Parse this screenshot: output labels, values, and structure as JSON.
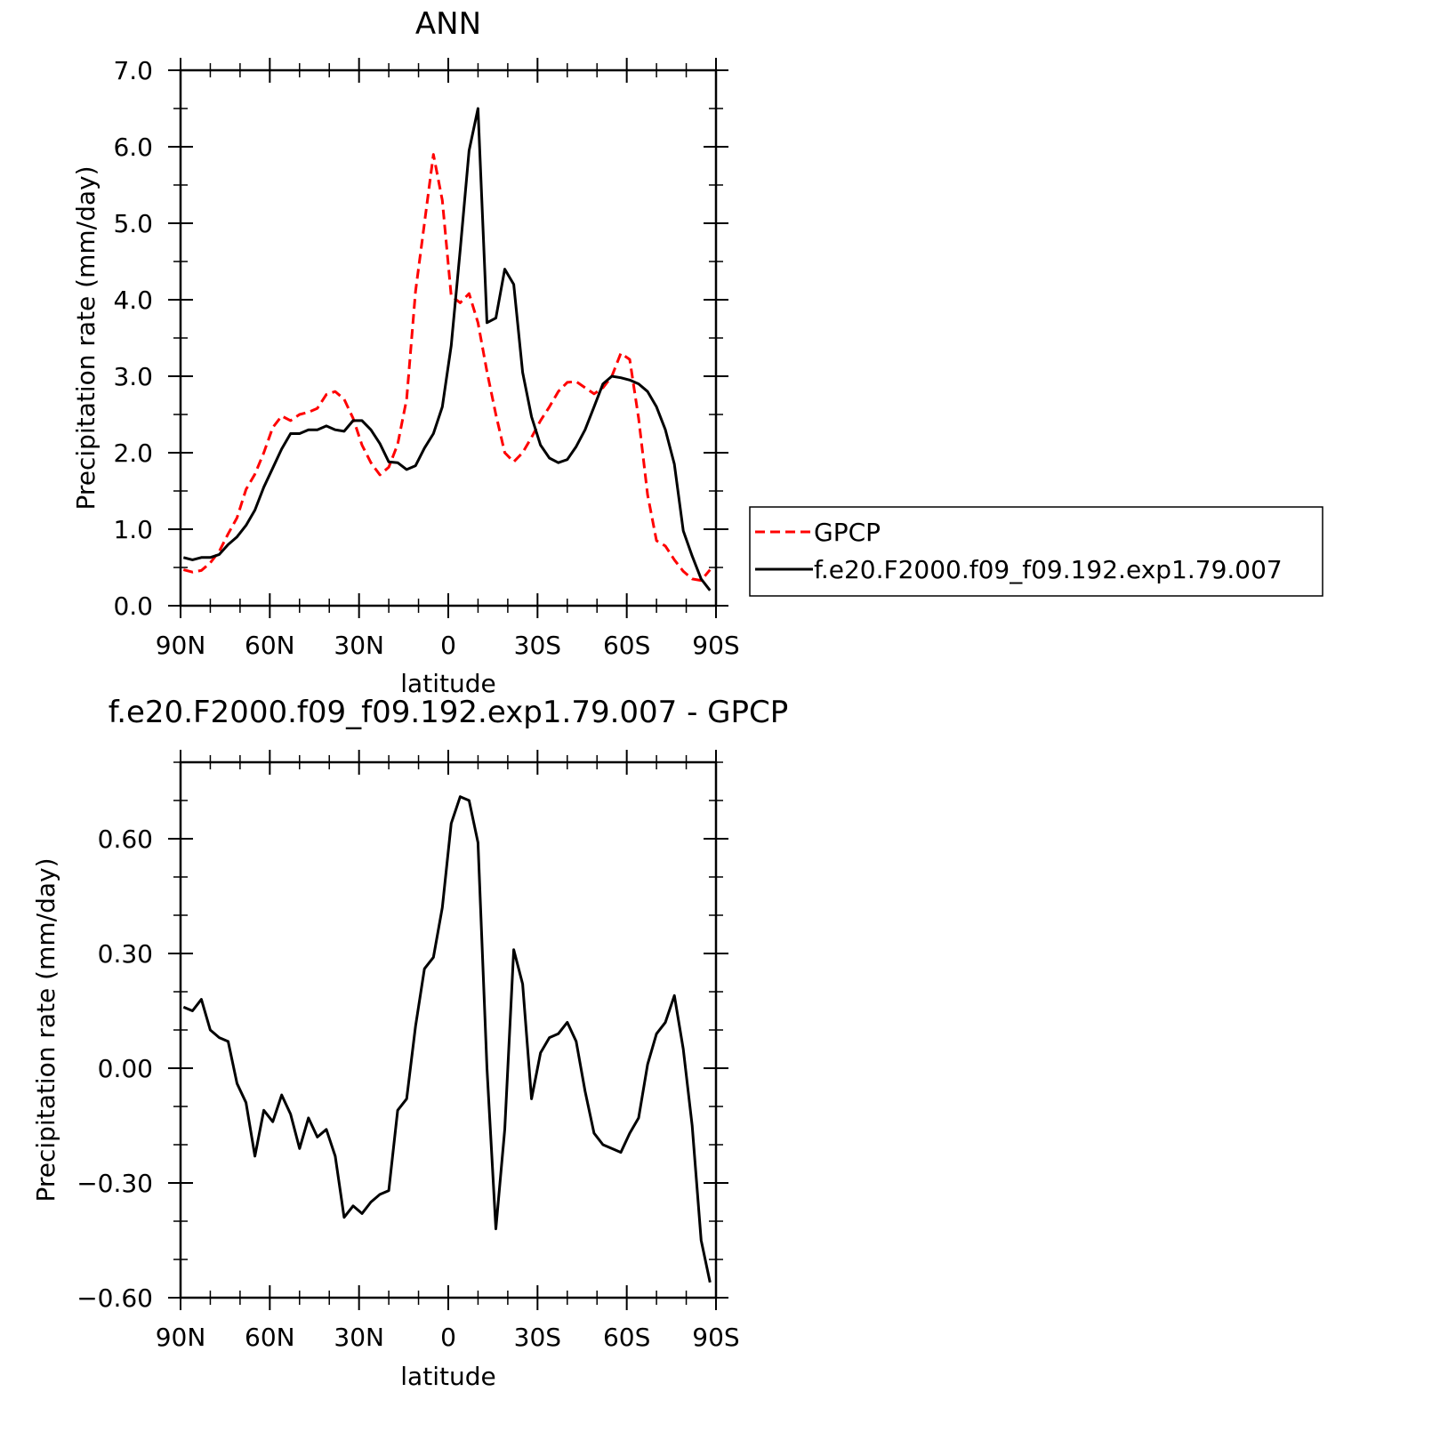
{
  "chart_data": [
    {
      "type": "line",
      "title": "ANN",
      "xlabel": "latitude",
      "ylabel": "Precipitation rate (mm/day)",
      "xlim": [
        90,
        -90
      ],
      "ylim": [
        0,
        7
      ],
      "x_ticks": [
        90,
        60,
        30,
        0,
        -30,
        -60,
        -90
      ],
      "x_tick_labels": [
        "90N",
        "60N",
        "30N",
        "0",
        "30S",
        "60S",
        "90S"
      ],
      "y_ticks": [
        0,
        1,
        2,
        3,
        4,
        5,
        6,
        7
      ],
      "y_tick_labels": [
        "0.0",
        "1.0",
        "2.0",
        "3.0",
        "4.0",
        "5.0",
        "6.0",
        "7.0"
      ],
      "legend": {
        "position": "right",
        "entries": [
          "GPCP",
          "f.e20.F2000.f09_f09.192.exp1.79.007"
        ]
      },
      "series": [
        {
          "name": "GPCP",
          "color": "#ff0000",
          "dash": "dashed",
          "x": [
            89,
            86,
            83,
            80,
            77,
            74,
            71,
            68,
            65,
            62,
            59,
            56,
            53,
            50,
            47,
            44,
            41,
            38,
            35,
            32,
            29,
            26,
            23,
            20,
            17,
            14,
            11,
            8,
            5,
            2,
            -1,
            -4,
            -7,
            -10,
            -13,
            -16,
            -19,
            -22,
            -25,
            -28,
            -31,
            -34,
            -37,
            -40,
            -43,
            -46,
            -49,
            -52,
            -55,
            -58,
            -61,
            -64,
            -67,
            -70,
            -73,
            -76,
            -79,
            -82,
            -85,
            -88
          ],
          "y": [
            0.47,
            0.44,
            0.46,
            0.56,
            0.71,
            0.94,
            1.15,
            1.52,
            1.72,
            2.0,
            2.33,
            2.48,
            2.42,
            2.5,
            2.53,
            2.58,
            2.76,
            2.8,
            2.7,
            2.45,
            2.1,
            1.87,
            1.71,
            1.81,
            2.11,
            2.7,
            4.11,
            5.0,
            5.9,
            5.3,
            4.05,
            3.96,
            4.08,
            3.7,
            3.06,
            2.5,
            2.0,
            1.88,
            2.0,
            2.2,
            2.42,
            2.6,
            2.8,
            2.92,
            2.93,
            2.85,
            2.77,
            2.85,
            3.0,
            3.3,
            3.22,
            2.45,
            1.45,
            0.85,
            0.78,
            0.6,
            0.45,
            0.35,
            0.33,
            0.47
          ]
        },
        {
          "name": "f.e20.F2000.f09_f09.192.exp1.79.007",
          "color": "#000000",
          "dash": "solid",
          "x": [
            89,
            86,
            83,
            80,
            77,
            74,
            71,
            68,
            65,
            62,
            59,
            56,
            53,
            50,
            47,
            44,
            41,
            38,
            35,
            32,
            29,
            26,
            23,
            20,
            17,
            14,
            11,
            8,
            5,
            2,
            -1,
            -4,
            -7,
            -10,
            -13,
            -16,
            -19,
            -22,
            -25,
            -28,
            -31,
            -34,
            -37,
            -40,
            -43,
            -46,
            -49,
            -52,
            -55,
            -58,
            -61,
            -64,
            -67,
            -70,
            -73,
            -76,
            -79,
            -82,
            -85,
            -88
          ],
          "y": [
            0.63,
            0.6,
            0.63,
            0.63,
            0.67,
            0.8,
            0.9,
            1.05,
            1.25,
            1.55,
            1.8,
            2.05,
            2.25,
            2.25,
            2.3,
            2.3,
            2.35,
            2.3,
            2.28,
            2.42,
            2.42,
            2.3,
            2.12,
            1.88,
            1.87,
            1.78,
            1.83,
            2.06,
            2.25,
            2.6,
            3.4,
            4.65,
            5.95,
            6.5,
            3.7,
            3.76,
            4.4,
            4.2,
            3.05,
            2.47,
            2.1,
            1.93,
            1.87,
            1.91,
            2.08,
            2.3,
            2.6,
            2.9,
            3.0,
            2.98,
            2.95,
            2.9,
            2.8,
            2.6,
            2.3,
            1.85,
            0.98,
            0.65,
            0.35,
            0.2
          ]
        }
      ]
    },
    {
      "type": "line",
      "title": "f.e20.F2000.f09_f09.192.exp1.79.007 - GPCP",
      "xlabel": "latitude",
      "ylabel": "Precipitation rate (mm/day)",
      "xlim": [
        90,
        -90
      ],
      "ylim": [
        -0.6,
        0.8
      ],
      "x_ticks": [
        90,
        60,
        30,
        0,
        -30,
        -60,
        -90
      ],
      "x_tick_labels": [
        "90N",
        "60N",
        "30N",
        "0",
        "30S",
        "60S",
        "90S"
      ],
      "y_ticks": [
        -0.6,
        -0.3,
        0,
        0.3,
        0.6
      ],
      "y_tick_labels": [
        "−0.60",
        "−0.30",
        "0.00",
        "0.30",
        "0.60"
      ],
      "series": [
        {
          "color": "#000000",
          "dash": "solid",
          "x": [
            89,
            86,
            83,
            80,
            77,
            74,
            71,
            68,
            65,
            62,
            59,
            56,
            53,
            50,
            47,
            44,
            41,
            38,
            35,
            32,
            29,
            26,
            23,
            20,
            17,
            14,
            11,
            8,
            5,
            2,
            -1,
            -4,
            -7,
            -10,
            -13,
            -16,
            -19,
            -22,
            -25,
            -28,
            -31,
            -34,
            -37,
            -40,
            -43,
            -46,
            -49,
            -52,
            -55,
            -58,
            -61,
            -64,
            -67,
            -70,
            -73,
            -76,
            -79,
            -82,
            -85,
            -88
          ],
          "y": [
            0.16,
            0.15,
            0.18,
            0.1,
            0.08,
            0.07,
            -0.04,
            -0.09,
            -0.23,
            -0.11,
            -0.14,
            -0.07,
            -0.12,
            -0.21,
            -0.13,
            -0.18,
            -0.16,
            -0.23,
            -0.39,
            -0.36,
            -0.38,
            -0.35,
            -0.33,
            -0.32,
            -0.11,
            -0.08,
            0.11,
            0.26,
            0.29,
            0.42,
            0.64,
            0.71,
            0.7,
            0.59,
            0.0,
            -0.42,
            -0.16,
            0.31,
            0.22,
            -0.08,
            0.04,
            0.08,
            0.09,
            0.12,
            0.07,
            -0.06,
            -0.17,
            -0.2,
            -0.21,
            -0.22,
            -0.17,
            -0.13,
            0.01,
            0.09,
            0.12,
            0.19,
            0.05,
            -0.15,
            -0.45,
            -0.56
          ]
        }
      ]
    }
  ]
}
